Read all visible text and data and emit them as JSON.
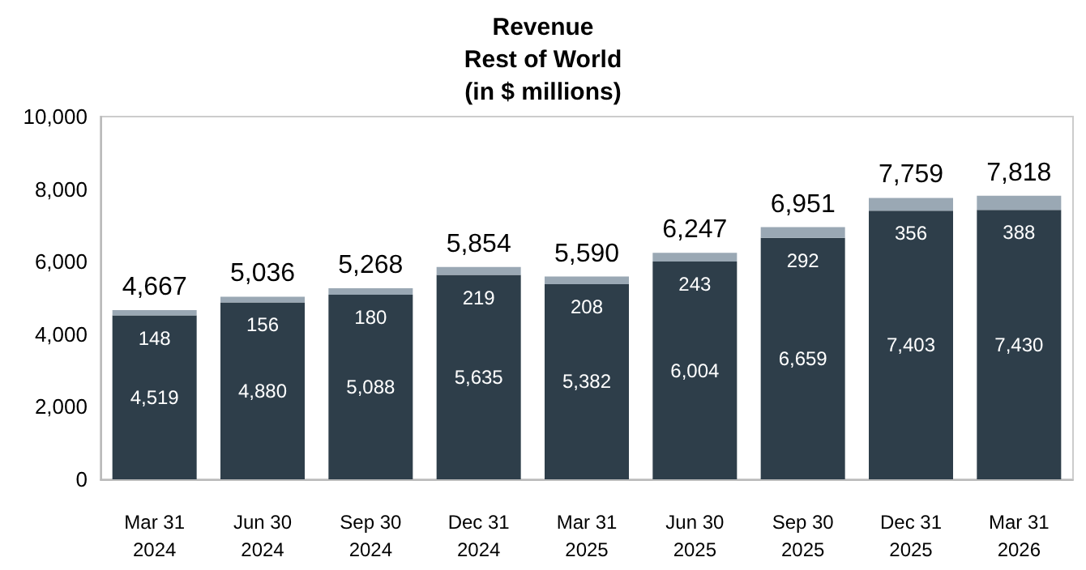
{
  "chart_data": {
    "type": "bar",
    "title": "Revenue\nRest of World\n(in $ millions)",
    "categories": [
      "Mar 31\n2024",
      "Jun 30\n2024",
      "Sep 30\n2024",
      "Dec 31\n2024",
      "Mar 31\n2025",
      "Jun 30\n2025",
      "Sep 30\n2025",
      "Dec 31\n2025",
      "Mar 31\n2026"
    ],
    "series": [
      {
        "color": "#2e3e4a",
        "values": [
          4519,
          4880,
          5088,
          5635,
          5382,
          6004,
          6659,
          7403,
          7430
        ],
        "value_labels": [
          "4,519",
          "4,880",
          "5,088",
          "5,635",
          "5,382",
          "6,004",
          "6,659",
          "7,403",
          "7,430"
        ]
      },
      {
        "color": "#9aa8b4",
        "values": [
          148,
          156,
          180,
          219,
          208,
          243,
          292,
          356,
          388
        ],
        "value_labels": [
          "148",
          "156",
          "180",
          "219",
          "208",
          "243",
          "292",
          "356",
          "388"
        ]
      }
    ],
    "stacked": true,
    "totals": [
      "4,667",
      "5,036",
      "5,268",
      "5,854",
      "5,590",
      "6,247",
      "6,951",
      "7,759",
      "7,818"
    ],
    "ylim": [
      0,
      10000
    ],
    "yticks": [
      {
        "value": 0,
        "label": "0"
      },
      {
        "value": 2000,
        "label": "2,000"
      },
      {
        "value": 4000,
        "label": "4,000"
      },
      {
        "value": 6000,
        "label": "6,000"
      },
      {
        "value": 8000,
        "label": "8,000"
      },
      {
        "value": 10000,
        "label": "10,000"
      }
    ]
  }
}
